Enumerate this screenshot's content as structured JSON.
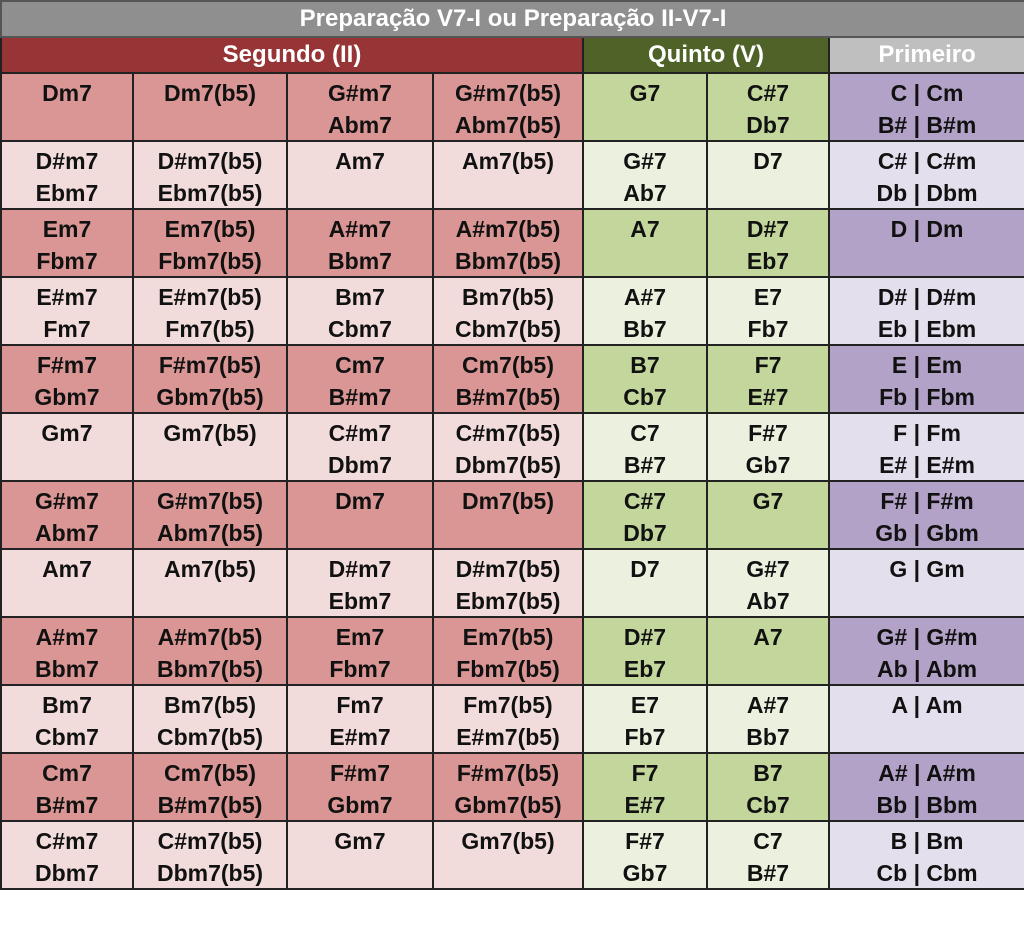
{
  "title": "Preparação V7-I ou Preparação II-V7-I",
  "groups": {
    "second": "Segundo (II)",
    "fifth": "Quinto (V)",
    "first": "Primeiro"
  },
  "colors": {
    "title_bg": "#8f8f8f",
    "second_header": "#963436",
    "fifth_header": "#4f6328",
    "first_header": "#bfbfbf",
    "second_dark": "#d99694",
    "second_light": "#f2dcdb",
    "fifth_dark": "#c3d69b",
    "fifth_light": "#ebf1de",
    "first_dark": "#b3a2c7",
    "first_light": "#e4dfec"
  },
  "rows": [
    {
      "ii": [
        [
          "Dm7",
          ""
        ],
        [
          "Dm7(b5)",
          ""
        ],
        [
          "G#m7",
          "Abm7"
        ],
        [
          "G#m7(b5)",
          "Abm7(b5)"
        ]
      ],
      "v": [
        [
          "G7",
          ""
        ],
        [
          "C#7",
          "Db7"
        ]
      ],
      "i": [
        "C | Cm",
        "B# | B#m"
      ]
    },
    {
      "ii": [
        [
          "D#m7",
          "Ebm7"
        ],
        [
          "D#m7(b5)",
          "Ebm7(b5)"
        ],
        [
          "Am7",
          ""
        ],
        [
          "Am7(b5)",
          ""
        ]
      ],
      "v": [
        [
          "G#7",
          "Ab7"
        ],
        [
          "D7",
          ""
        ]
      ],
      "i": [
        "C# | C#m",
        "Db | Dbm"
      ]
    },
    {
      "ii": [
        [
          "Em7",
          "Fbm7"
        ],
        [
          "Em7(b5)",
          "Fbm7(b5)"
        ],
        [
          "A#m7",
          "Bbm7"
        ],
        [
          "A#m7(b5)",
          "Bbm7(b5)"
        ]
      ],
      "v": [
        [
          "A7",
          ""
        ],
        [
          "D#7",
          "Eb7"
        ]
      ],
      "i": [
        "D | Dm",
        ""
      ]
    },
    {
      "ii": [
        [
          "E#m7",
          "Fm7"
        ],
        [
          "E#m7(b5)",
          "Fm7(b5)"
        ],
        [
          "Bm7",
          "Cbm7"
        ],
        [
          "Bm7(b5)",
          "Cbm7(b5)"
        ]
      ],
      "v": [
        [
          "A#7",
          "Bb7"
        ],
        [
          "E7",
          "Fb7"
        ]
      ],
      "i": [
        "D# | D#m",
        "Eb | Ebm"
      ]
    },
    {
      "ii": [
        [
          "F#m7",
          "Gbm7"
        ],
        [
          "F#m7(b5)",
          "Gbm7(b5)"
        ],
        [
          "Cm7",
          "B#m7"
        ],
        [
          "Cm7(b5)",
          "B#m7(b5)"
        ]
      ],
      "v": [
        [
          "B7",
          "Cb7"
        ],
        [
          "F7",
          "E#7"
        ]
      ],
      "i": [
        "E | Em",
        "Fb | Fbm"
      ]
    },
    {
      "ii": [
        [
          "Gm7",
          ""
        ],
        [
          "Gm7(b5)",
          ""
        ],
        [
          "C#m7",
          "Dbm7"
        ],
        [
          "C#m7(b5)",
          "Dbm7(b5)"
        ]
      ],
      "v": [
        [
          "C7",
          "B#7"
        ],
        [
          "F#7",
          "Gb7"
        ]
      ],
      "i": [
        "F | Fm",
        "E# | E#m"
      ]
    },
    {
      "ii": [
        [
          "G#m7",
          "Abm7"
        ],
        [
          "G#m7(b5)",
          "Abm7(b5)"
        ],
        [
          "Dm7",
          ""
        ],
        [
          "Dm7(b5)",
          ""
        ]
      ],
      "v": [
        [
          "C#7",
          "Db7"
        ],
        [
          "G7",
          ""
        ]
      ],
      "i": [
        "F# | F#m",
        "Gb | Gbm"
      ]
    },
    {
      "ii": [
        [
          "Am7",
          ""
        ],
        [
          "Am7(b5)",
          ""
        ],
        [
          "D#m7",
          "Ebm7"
        ],
        [
          "D#m7(b5)",
          "Ebm7(b5)"
        ]
      ],
      "v": [
        [
          "D7",
          ""
        ],
        [
          "G#7",
          "Ab7"
        ]
      ],
      "i": [
        "G | Gm",
        ""
      ]
    },
    {
      "ii": [
        [
          "A#m7",
          "Bbm7"
        ],
        [
          "A#m7(b5)",
          "Bbm7(b5)"
        ],
        [
          "Em7",
          "Fbm7"
        ],
        [
          "Em7(b5)",
          "Fbm7(b5)"
        ]
      ],
      "v": [
        [
          "D#7",
          "Eb7"
        ],
        [
          "A7",
          ""
        ]
      ],
      "i": [
        "G# | G#m",
        "Ab | Abm"
      ]
    },
    {
      "ii": [
        [
          "Bm7",
          "Cbm7"
        ],
        [
          "Bm7(b5)",
          "Cbm7(b5)"
        ],
        [
          "Fm7",
          "E#m7"
        ],
        [
          "Fm7(b5)",
          "E#m7(b5)"
        ]
      ],
      "v": [
        [
          "E7",
          "Fb7"
        ],
        [
          "A#7",
          "Bb7"
        ]
      ],
      "i": [
        "A | Am",
        ""
      ]
    },
    {
      "ii": [
        [
          "Cm7",
          "B#m7"
        ],
        [
          "Cm7(b5)",
          "B#m7(b5)"
        ],
        [
          "F#m7",
          "Gbm7"
        ],
        [
          "F#m7(b5)",
          "Gbm7(b5)"
        ]
      ],
      "v": [
        [
          "F7",
          "E#7"
        ],
        [
          "B7",
          "Cb7"
        ]
      ],
      "i": [
        "A# | A#m",
        "Bb | Bbm"
      ]
    },
    {
      "ii": [
        [
          "C#m7",
          "Dbm7"
        ],
        [
          "C#m7(b5)",
          "Dbm7(b5)"
        ],
        [
          "Gm7",
          ""
        ],
        [
          "Gm7(b5)",
          ""
        ]
      ],
      "v": [
        [
          "F#7",
          "Gb7"
        ],
        [
          "C7",
          "B#7"
        ]
      ],
      "i": [
        "B | Bm",
        "Cb | Cbm"
      ]
    }
  ]
}
